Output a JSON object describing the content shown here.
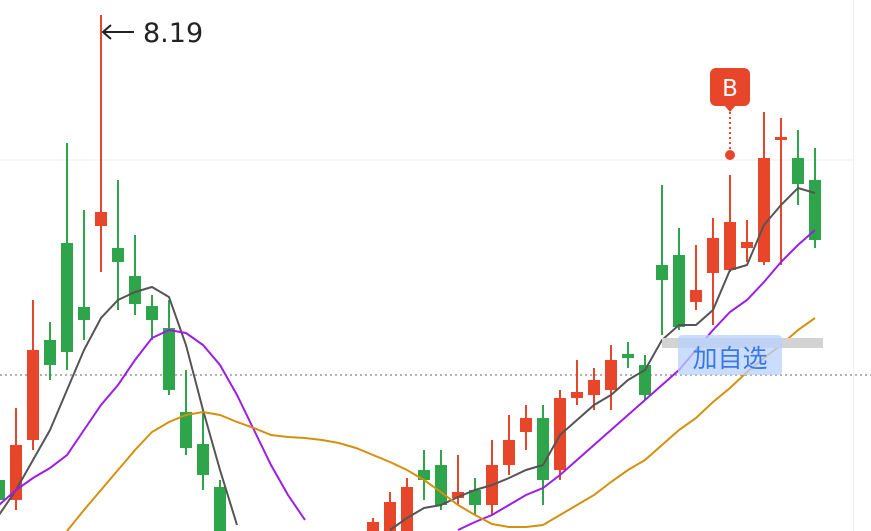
{
  "chart_data": {
    "type": "candlestick",
    "ylim": [
      3.03,
      8.34
    ],
    "grid_lines": [
      6.74
    ],
    "reference_line": 4.59,
    "up_color": "#e8462a",
    "down_color": "#2ea54a",
    "open": [
      3.54,
      3.34,
      3.94,
      4.94,
      5.91,
      5.27,
      6.08,
      5.86,
      5.58,
      5.28,
      5.06,
      4.22,
      3.9,
      3.47,
      null,
      null,
      null,
      null,
      null,
      null,
      null,
      null,
      2.94,
      2.9,
      3.0,
      3.64,
      3.69,
      3.36,
      3.44,
      3.29,
      3.69,
      4.02,
      4.16,
      3.64,
      4.36,
      4.39,
      4.44,
      4.8,
      4.69,
      5.69,
      5.79,
      5.32,
      5.61,
      5.64,
      5.86,
      5.72,
      6.94,
      6.76,
      6.54
    ],
    "high": [
      3.64,
      4.26,
      5.34,
      5.12,
      6.91,
      6.24,
      8.19,
      6.54,
      5.99,
      5.39,
      5.34,
      4.64,
      4.24,
      3.54,
      null,
      null,
      null,
      null,
      null,
      null,
      null,
      null,
      3.16,
      3.42,
      3.56,
      3.84,
      3.84,
      3.79,
      3.56,
      3.94,
      4.19,
      4.29,
      4.29,
      4.44,
      4.74,
      4.66,
      4.89,
      4.92,
      4.79,
      6.49,
      6.06,
      5.89,
      6.16,
      6.59,
      6.14,
      7.22,
      7.16,
      7.04,
      6.86
    ],
    "low": [
      3.24,
      3.24,
      3.84,
      4.54,
      4.64,
      4.94,
      5.62,
      5.24,
      5.19,
      4.94,
      4.39,
      3.79,
      3.44,
      2.8,
      null,
      null,
      null,
      null,
      null,
      null,
      null,
      null,
      2.9,
      2.85,
      2.95,
      3.34,
      3.24,
      3.29,
      3.19,
      3.19,
      3.59,
      3.84,
      3.29,
      3.54,
      4.29,
      4.24,
      4.24,
      4.66,
      4.34,
      4.99,
      5.04,
      5.24,
      5.09,
      5.62,
      5.72,
      5.69,
      5.69,
      6.29,
      5.86
    ],
    "close": [
      3.34,
      3.89,
      4.84,
      4.69,
      4.82,
      5.14,
      6.22,
      5.72,
      5.3,
      5.14,
      4.44,
      3.86,
      3.59,
      2.9,
      null,
      null,
      null,
      null,
      null,
      null,
      null,
      null,
      3.12,
      3.32,
      3.47,
      3.54,
      3.29,
      3.42,
      3.29,
      3.69,
      3.94,
      4.16,
      3.54,
      4.36,
      4.42,
      4.54,
      4.74,
      4.76,
      4.39,
      5.54,
      5.07,
      5.44,
      5.96,
      6.12,
      5.92,
      6.76,
      6.97,
      6.5,
      5.94
    ],
    "series": [
      {
        "color": "#555555",
        "values": [
          3.19,
          3.44,
          3.74,
          4.04,
          4.44,
          4.84,
          5.16,
          5.34,
          5.42,
          5.47,
          5.37,
          4.89,
          4.24,
          3.64,
          3.09,
          null,
          null,
          null,
          null,
          null,
          null,
          null,
          null,
          3.04,
          3.16,
          3.26,
          3.29,
          3.37,
          3.44,
          3.49,
          3.56,
          3.64,
          3.69,
          3.99,
          4.14,
          4.29,
          4.39,
          4.54,
          4.64,
          4.94,
          5.09,
          5.09,
          5.24,
          5.64,
          5.69,
          6.09,
          6.29,
          6.46,
          6.41
        ]
      },
      {
        "color": "#9b1de8",
        "values": [
          3.29,
          3.44,
          3.56,
          3.66,
          3.79,
          4.04,
          4.29,
          4.49,
          4.74,
          4.96,
          5.04,
          5.01,
          4.89,
          4.69,
          4.39,
          4.04,
          3.69,
          3.39,
          3.14,
          null,
          null,
          null,
          null,
          null,
          null,
          null,
          null,
          3.04,
          3.12,
          3.19,
          3.29,
          3.39,
          3.46,
          3.59,
          3.74,
          3.89,
          4.04,
          4.19,
          4.34,
          4.49,
          4.64,
          4.84,
          5.04,
          5.22,
          5.34,
          5.52,
          5.72,
          5.89,
          6.04
        ]
      },
      {
        "color": "#d4900e",
        "values": [
          null,
          null,
          null,
          null,
          3.03,
          3.24,
          3.44,
          3.64,
          3.84,
          4.02,
          4.12,
          4.19,
          4.22,
          4.19,
          4.12,
          4.06,
          3.99,
          3.97,
          3.96,
          3.94,
          3.91,
          3.86,
          3.79,
          3.72,
          3.64,
          3.54,
          3.42,
          3.29,
          3.19,
          3.1,
          3.07,
          3.07,
          3.09,
          3.19,
          3.29,
          3.39,
          3.52,
          3.64,
          3.74,
          3.89,
          4.04,
          4.16,
          4.32,
          4.46,
          4.62,
          4.76,
          4.89,
          5.04,
          5.16
        ]
      }
    ],
    "max_annotation": {
      "text": "8.19",
      "index": 6
    },
    "buy_marker": {
      "label": "B",
      "index": 43,
      "value": 6.79
    }
  },
  "watchlist_button": "加自选"
}
